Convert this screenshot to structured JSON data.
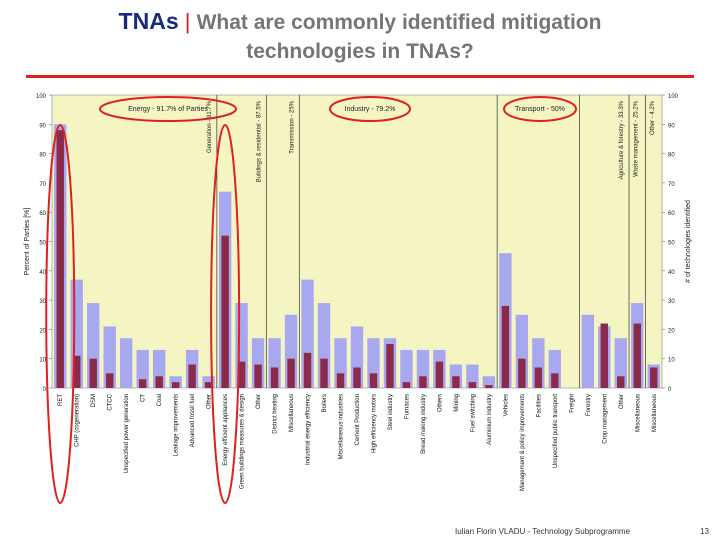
{
  "slide": {
    "title_main": "TNAs",
    "title_sep": " | ",
    "title_sub_line1": "What are commonly identified mitigation",
    "title_sub_line2": "technologies in TNAs?",
    "footer_author": "Iulian Florin VLADU - Technology Subprogramme",
    "page_number": "13"
  },
  "colors": {
    "plot_bg": "#f5f5c4",
    "total_bar": "#a8a8f0",
    "inner_bar": "#8b2a4a",
    "ellipse": "#e02020",
    "title_rule": "#e02020",
    "title_main": "#1a2a80",
    "title_sub": "#757575"
  },
  "chart_data": {
    "type": "bar",
    "ylabel": "Percent of Parties [%]",
    "ylabel_right": "# of technologies identified",
    "ylim": [
      0,
      100
    ],
    "yticks": [
      0,
      10,
      20,
      30,
      40,
      50,
      60,
      70,
      80,
      90,
      100
    ],
    "grid": false,
    "categories": [
      "RET",
      "CHP (cogeneration)",
      "DSM",
      "CTCC",
      "Unspecified power generation",
      "CT",
      "Coal",
      "Leakage improvements",
      "Advanced fossil fuel",
      "Other",
      "Energy efficient appliances",
      "Green buildings measures & design",
      "Other",
      "District heating",
      "Miscellaneous",
      "Industrial energy efficiency",
      "Boilers",
      "Miscellaneous industries",
      "Cement Production",
      "High efficiency motors",
      "Steel industry",
      "Furnaces",
      "Bread making industry",
      "Others",
      "Mining",
      "Fuel switching",
      "Aluminium industry",
      "Vehicles",
      "Management & policy improvements",
      "Facilities",
      "Unspecified public transport",
      "Freight",
      "Forestry",
      "Crop management",
      "Other",
      "Miscellaneous",
      "Miscellaneous"
    ],
    "series": [
      {
        "values": [
          90,
          37,
          29,
          21,
          17,
          13,
          13,
          4,
          13,
          4,
          67,
          29,
          17,
          17,
          25,
          37,
          29,
          17,
          21,
          17,
          17,
          13,
          13,
          13,
          8,
          8,
          4,
          46,
          25,
          17,
          13,
          0,
          25,
          21,
          17,
          29,
          8
        ]
      },
      {
        "values": [
          88,
          11,
          10,
          5,
          0,
          3,
          4,
          2,
          8,
          2,
          52,
          9,
          8,
          7,
          10,
          12,
          10,
          5,
          7,
          5,
          15,
          2,
          4,
          9,
          4,
          2,
          1,
          28,
          10,
          7,
          5,
          0,
          0,
          22,
          4,
          22,
          7
        ]
      }
    ],
    "group_labels": [
      {
        "text": "Energy - 91.7% of Parties",
        "range": [
          0,
          14
        ],
        "circled": true
      },
      {
        "text": "Generation - 91.7%",
        "range": [
          0,
          9
        ],
        "vertical": true
      },
      {
        "text": "Buildings & residential - 87.5%",
        "range": [
          10,
          12
        ],
        "vertical": true
      },
      {
        "text": "Transmission - 25%",
        "range": [
          13,
          14
        ],
        "vertical": true
      },
      {
        "text": "Industry - 79.2%",
        "range": [
          15,
          26
        ],
        "circled": true
      },
      {
        "text": "Transport - 50%",
        "range": [
          27,
          31
        ],
        "circled": true
      },
      {
        "text": "Agriculture & forestry - 33.3%",
        "range": [
          32,
          34
        ],
        "vertical": true
      },
      {
        "text": "Waste management - 25.2%",
        "range": [
          35,
          35
        ],
        "vertical": true
      },
      {
        "text": "Other - 4.2%",
        "range": [
          36,
          36
        ],
        "vertical": true
      }
    ],
    "circled_categories": [
      0,
      10
    ]
  }
}
